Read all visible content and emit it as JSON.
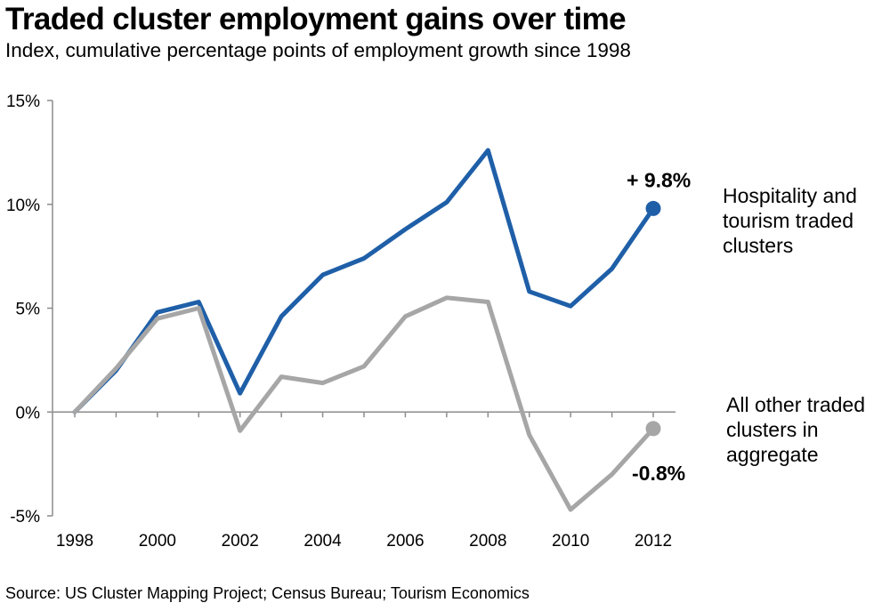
{
  "title": "Traded cluster employment gains over time",
  "subtitle": "Index, cumulative percentage points of employment growth since 1998",
  "source": "Source: US Cluster Mapping Project; Census Bureau; Tourism Economics",
  "chart_data": {
    "type": "line",
    "x": [
      1998,
      1999,
      2000,
      2001,
      2002,
      2003,
      2004,
      2005,
      2006,
      2007,
      2008,
      2009,
      2010,
      2011,
      2012
    ],
    "x_tick_labels": [
      "1998",
      "2000",
      "2002",
      "2004",
      "2006",
      "2008",
      "2010",
      "2012"
    ],
    "x_tick_values": [
      1998,
      2000,
      2002,
      2004,
      2006,
      2008,
      2010,
      2012
    ],
    "y_tick_labels": [
      "15%",
      "10%",
      "5%",
      "0%",
      "-5%"
    ],
    "y_tick_values": [
      15,
      10,
      5,
      0,
      -5
    ],
    "ylim": [
      -5,
      15
    ],
    "xlim": [
      1998,
      2012
    ],
    "grid": false,
    "series": [
      {
        "label_lines": [
          "Hospitality and",
          "tourism traded",
          "clusters"
        ],
        "color": "#1f5fa8",
        "values": [
          0,
          2.0,
          4.8,
          5.3,
          0.9,
          4.6,
          6.6,
          7.4,
          8.8,
          10.1,
          12.6,
          5.8,
          5.1,
          6.9,
          9.8
        ],
        "end_label": "+ 9.8%"
      },
      {
        "label_lines": [
          "All other traded",
          "clusters in",
          "aggregate"
        ],
        "color": "#a6a6a6",
        "values": [
          0,
          2.1,
          4.5,
          5.0,
          -0.9,
          1.7,
          1.4,
          2.2,
          4.6,
          5.5,
          5.3,
          -1.1,
          -4.7,
          -3.0,
          -0.8
        ],
        "end_label": "-0.8%"
      }
    ]
  }
}
